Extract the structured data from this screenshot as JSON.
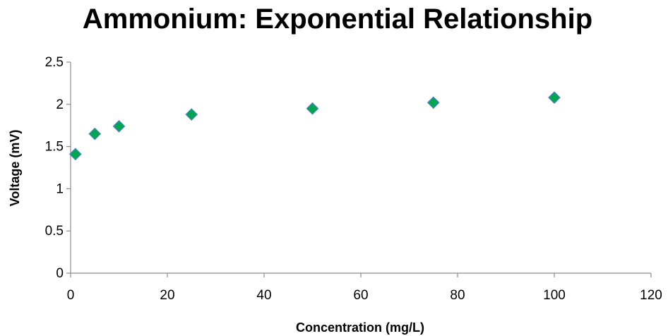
{
  "chart_data": {
    "type": "scatter",
    "title": "Ammonium: Exponential Relationship",
    "xlabel": "Concentration (mg/L)",
    "ylabel": "Voltage (mV)",
    "xlim": [
      0,
      120
    ],
    "ylim": [
      0,
      2.5
    ],
    "xticks": [
      "0",
      "20",
      "40",
      "60",
      "80",
      "100",
      "120"
    ],
    "yticks": [
      "0",
      "0.5",
      "1",
      "1.5",
      "2",
      "2.5"
    ],
    "grid": false,
    "legend": "none",
    "marker": "diamond",
    "colors": {
      "marker_fill": "#00a651",
      "marker_edge": "#4a7fc0",
      "axis": "#8c8c8c"
    },
    "series": [
      {
        "x": [
          1,
          5,
          10,
          25,
          50,
          75,
          100
        ],
        "y": [
          1.41,
          1.65,
          1.74,
          1.88,
          1.95,
          2.02,
          2.08
        ]
      }
    ]
  }
}
